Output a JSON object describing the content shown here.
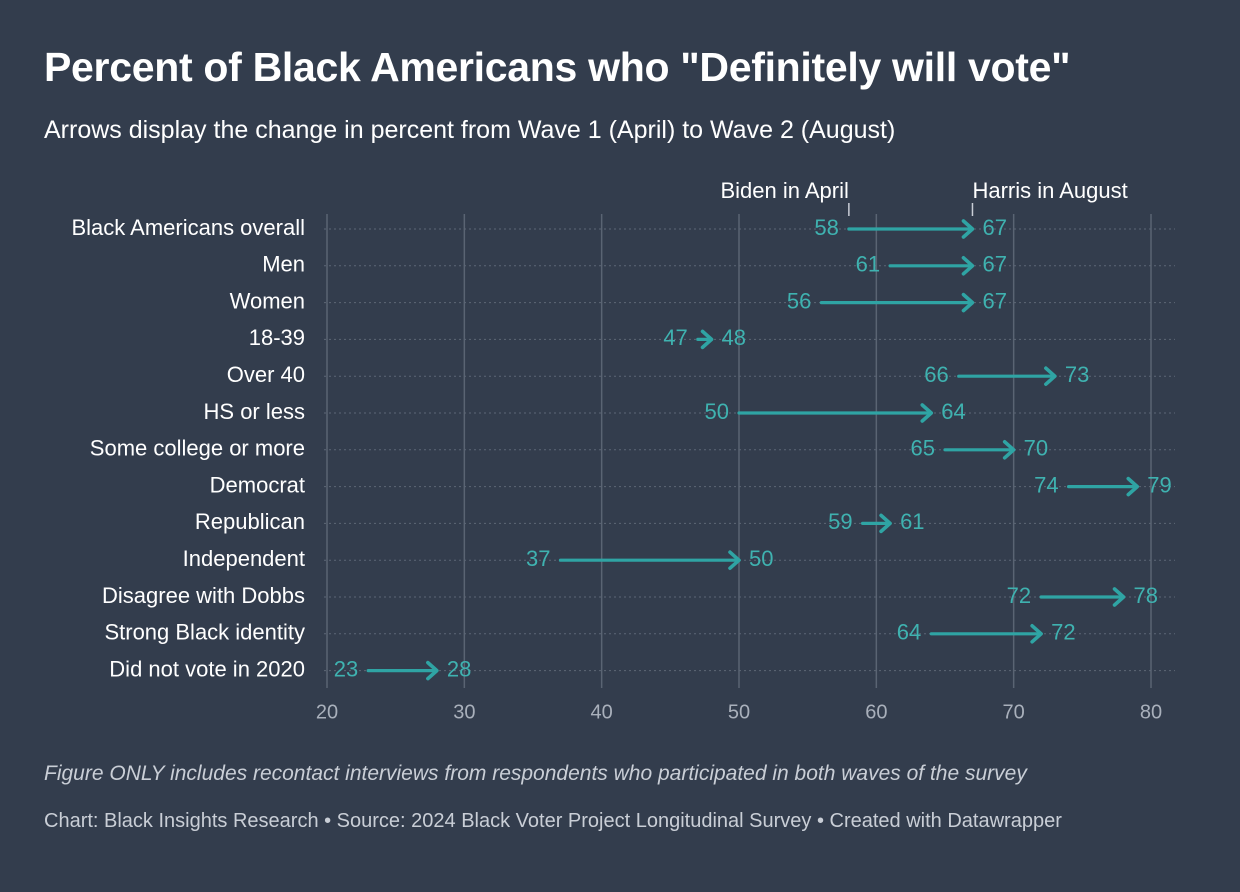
{
  "title": "Percent of Black Americans who \"Definitely will vote\"",
  "subtitle": "Arrows display the change in percent from Wave 1 (April)  to Wave 2 (August)",
  "note": "Figure ONLY includes recontact interviews from respondents who participated in both waves of the survey",
  "footer": "Chart: Black Insights Research • Source: 2024 Black Voter Project Longitudinal Survey • Created with Datawrapper",
  "colors": {
    "background": "#333d4d",
    "arrow": "#2fa4a4",
    "value_label": "#3fb2b0",
    "gridline": "#5a6473",
    "axis_tick": "#a9b0bb"
  },
  "chart_data": {
    "type": "arrow",
    "categories": [
      "Black Americans overall",
      "Men",
      "Women",
      "18-39",
      "Over 40",
      "HS or less",
      "Some college or more",
      "Democrat",
      "Republican",
      "Independent",
      "Disagree with Dobbs",
      "Strong Black identity",
      "Did not vote in 2020"
    ],
    "series": [
      {
        "name": "Biden in April",
        "values": [
          58,
          61,
          56,
          47,
          66,
          50,
          65,
          74,
          59,
          37,
          72,
          64,
          23
        ]
      },
      {
        "name": "Harris in August",
        "values": [
          67,
          67,
          67,
          48,
          73,
          64,
          70,
          79,
          61,
          50,
          78,
          72,
          28
        ]
      }
    ],
    "xlim": [
      20,
      80
    ],
    "xticks": [
      20,
      30,
      40,
      50,
      60,
      70,
      80
    ],
    "grid": true,
    "legend": "annotations above first row"
  }
}
